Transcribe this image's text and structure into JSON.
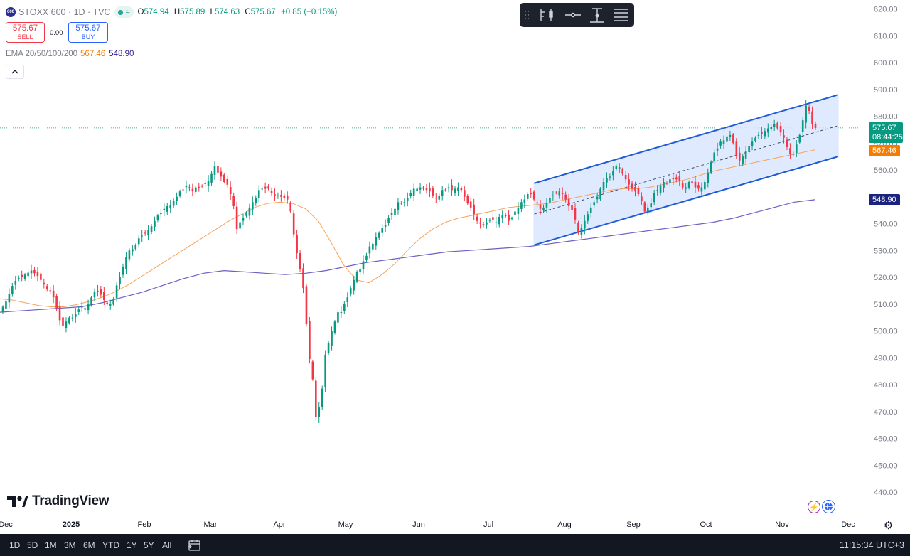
{
  "header": {
    "symbol_logo": "600",
    "symbol": "STOXX 600 · 1D · TVC",
    "open_label": "O",
    "open": "574.94",
    "high_label": "H",
    "high": "575.89",
    "low_label": "L",
    "low": "574.63",
    "close_label": "C",
    "close": "575.67",
    "change": "+0.85 (+0.15%)"
  },
  "trade": {
    "sell_price": "575.67",
    "sell_label": "SELL",
    "spread": "0.00",
    "buy_price": "575.67",
    "buy_label": "BUY"
  },
  "indicator": {
    "name": "EMA 20/50/100/200",
    "ema50": "567.46",
    "ema200": "548.90"
  },
  "price_tags": {
    "last_price": "575.67",
    "countdown": "08:44:25",
    "ema50": "567.46",
    "ema200": "548.90"
  },
  "branding": {
    "logo_text": "TradingView"
  },
  "timeframes": [
    "1D",
    "5D",
    "1M",
    "3M",
    "6M",
    "YTD",
    "1Y",
    "5Y",
    "All"
  ],
  "clock": "11:15:34 UTC+3",
  "colors": {
    "up": "#089981",
    "down": "#f23645",
    "ema50": "#f7a35c",
    "ema200": "#6c5fc7",
    "channel_line": "#1e5bd6",
    "channel_fill": "#dbe6ff",
    "last_price_tag": "#089981",
    "ema50_tag": "#f57c00",
    "ema200_tag": "#1a237e"
  },
  "icons": [
    "drag-handle-icon",
    "candle-style-icon",
    "horizontal-line-icon",
    "vertical-range-icon",
    "settings-lines-icon",
    "calendar-range-icon",
    "flash-icon",
    "globe-icon",
    "gear-icon"
  ],
  "chart_data": {
    "type": "candlestick",
    "title": "STOXX 600 · 1D · TVC",
    "ylim": [
      435,
      622
    ],
    "y_ticks": [
      620,
      610,
      600,
      590,
      580,
      570,
      560,
      550,
      540,
      530,
      520,
      510,
      500,
      490,
      480,
      470,
      460,
      450,
      440
    ],
    "y_tick_labels": [
      "620.00",
      "610.00",
      "600.00",
      "590.00",
      "580.00",
      "570.00",
      "560.00",
      "550.00",
      "540.00",
      "530.00",
      "520.00",
      "510.00",
      "500.00",
      "490.00",
      "480.00",
      "470.00",
      "460.00",
      "450.00",
      "440.00"
    ],
    "x_tick_labels": [
      "Dec",
      "2025",
      "Feb",
      "Mar",
      "Apr",
      "May",
      "Jun",
      "Jul",
      "Aug",
      "Sep",
      "Oct",
      "Nov",
      "Dec"
    ],
    "x_start": "2024-12-02",
    "candles_close": [
      509.0,
      511.0,
      513.8,
      516.8,
      518.7,
      519.8,
      520.2,
      521.0,
      521.7,
      522.5,
      521.5,
      520.5,
      519.0,
      517.5,
      515.5,
      515.0,
      512.5,
      508.5,
      504.0,
      502.0,
      503.5,
      505.0,
      505.0,
      506.5,
      508.0,
      509.0,
      508.5,
      510.0,
      512.5,
      514.5,
      515.0,
      513.5,
      511.5,
      510.0,
      510.0,
      512.0,
      517.0,
      520.0,
      524.0,
      527.5,
      530.0,
      530.5,
      532.0,
      534.5,
      535.5,
      536.5,
      537.5,
      539.0,
      541.0,
      543.0,
      544.0,
      545.5,
      546.5,
      547.0,
      548.5,
      550.0,
      552.0,
      552.5,
      554.0,
      553.5,
      552.0,
      553.5,
      553.5,
      554.0,
      555.0,
      556.0,
      558.5,
      561.5,
      559.0,
      557.5,
      555.5,
      554.5,
      551.0,
      546.5,
      538.0,
      540.5,
      542.0,
      544.0,
      546.0,
      548.0,
      549.5,
      552.5,
      553.0,
      553.0,
      553.0,
      551.5,
      550.5,
      550.5,
      550.0,
      549.5,
      549.0,
      544.5,
      536.0,
      529.0,
      523.0,
      516.0,
      502.5,
      489.5,
      482.0,
      468.0,
      471.5,
      478.5,
      491.0,
      495.5,
      500.0,
      503.5,
      507.0,
      507.0,
      510.0,
      512.5,
      516.0,
      519.0,
      522.0,
      523.0,
      526.0,
      528.0,
      531.5,
      532.5,
      535.0,
      536.5,
      538.5,
      539.5,
      542.0,
      544.0,
      545.5,
      548.0,
      547.5,
      548.0,
      549.5,
      551.5,
      553.0,
      553.0,
      553.5,
      553.0,
      552.5,
      552.0,
      550.5,
      549.5,
      550.5,
      552.5,
      552.5,
      553.5,
      552.5,
      553.0,
      553.5,
      552.5,
      550.0,
      547.5,
      546.0,
      543.5,
      541.0,
      540.0,
      539.5,
      540.5,
      541.5,
      541.5,
      540.5,
      542.5,
      543.0,
      543.0,
      541.0,
      542.0,
      544.5,
      546.0,
      548.0,
      549.0,
      551.0,
      551.0,
      549.0,
      547.5,
      545.5,
      546.0,
      547.5,
      549.5,
      550.5,
      551.5,
      552.0,
      551.0,
      549.0,
      546.5,
      545.0,
      541.5,
      536.5,
      538.5,
      541.0,
      543.5,
      546.0,
      548.0,
      550.0,
      553.0,
      555.5,
      557.0,
      557.5,
      559.5,
      561.5,
      561.0,
      558.5,
      556.5,
      554.5,
      553.0,
      552.0,
      551.0,
      548.5,
      544.5,
      546.0,
      547.5,
      551.5,
      552.5,
      554.0,
      555.5,
      555.0,
      556.5,
      556.5,
      556.5,
      556.0,
      553.5,
      553.5,
      555.5,
      555.0,
      553.5,
      553.0,
      553.5,
      555.5,
      559.0,
      563.0,
      566.5,
      568.0,
      570.5,
      571.0,
      572.5,
      573.0,
      570.0,
      565.5,
      563.5,
      565.0,
      567.0,
      569.0,
      570.5,
      572.0,
      573.0,
      573.5,
      574.5,
      575.5,
      576.0,
      577.0,
      575.5,
      574.0,
      572.0,
      568.5,
      566.0,
      566.0,
      569.5,
      573.0,
      578.5,
      584.0,
      582.0,
      577.0,
      575.67
    ],
    "ema50": [
      512.0,
      511.5,
      510.5,
      509.5,
      509.0,
      509.0,
      509.8,
      511.0,
      512.5,
      514.5,
      517.0,
      520.0,
      523.0,
      526.0,
      529.0,
      532.0,
      535.0,
      538.0,
      541.0,
      543.5,
      546.0,
      547.5,
      548.0,
      547.5,
      545.5,
      541.0,
      533.0,
      524.5,
      519.0,
      518.0,
      521.0,
      525.0,
      530.0,
      534.5,
      538.0,
      540.5,
      542.0,
      543.0,
      544.0,
      545.0,
      546.0,
      546.5,
      547.0,
      547.5,
      548.5,
      549.5,
      550.5,
      551.5,
      552.5,
      553.0,
      553.0,
      553.5,
      554.5,
      555.5,
      556.5,
      558.0,
      559.5,
      560.5,
      561.5,
      562.5,
      563.5,
      564.5,
      565.5,
      566.5,
      567.46
    ],
    "ema200": [
      507.0,
      507.5,
      508.0,
      508.5,
      509.0,
      510.5,
      512.5,
      514.5,
      517.0,
      519.5,
      521.5,
      522.5,
      522.0,
      521.5,
      521.0,
      521.5,
      522.5,
      524.0,
      525.5,
      526.5,
      527.5,
      528.5,
      529.5,
      530.0,
      530.5,
      531.0,
      531.5,
      532.5,
      533.5,
      534.5,
      535.5,
      536.5,
      537.5,
      538.5,
      539.5,
      540.5,
      542.0,
      544.0,
      546.0,
      548.0,
      548.9
    ],
    "channel": {
      "upper": [
        [
          "2025-07-21",
          555.0
        ],
        [
          "2025-11-21",
          588.0
        ]
      ],
      "middle": [
        [
          "2025-07-21",
          543.5
        ],
        [
          "2025-11-21",
          576.5
        ]
      ],
      "lower": [
        [
          "2025-07-21",
          532.0
        ],
        [
          "2025-11-21",
          565.0
        ]
      ]
    },
    "last_price": 575.67
  }
}
